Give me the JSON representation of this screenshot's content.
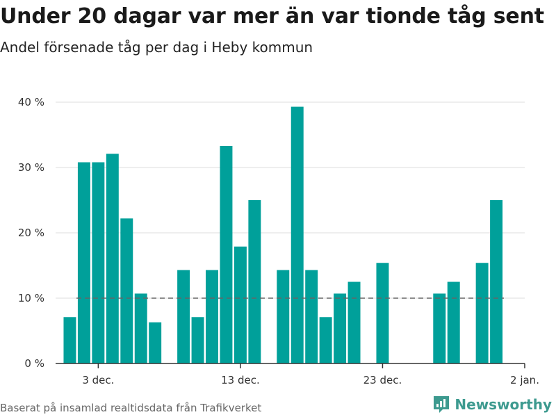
{
  "header": {
    "title": "Under 20 dagar var mer än var tionde tåg sent",
    "subtitle": "Andel försenade tåg per dag i Heby kommun"
  },
  "footer": {
    "source": "Baserat på insamlad realtidsdata från Trafikverket",
    "brand": "Newsworthy",
    "brand_icon": "chart-logo-icon"
  },
  "colors": {
    "bar": "#00a09a",
    "grid": "#dddddd",
    "reference": "#666666",
    "axis": "#333333",
    "brand": "#3d9a8f"
  },
  "chart_data": {
    "type": "bar",
    "title": "",
    "xlabel": "",
    "ylabel": "",
    "unit": "%",
    "ylim": [
      0,
      40
    ],
    "yticks": [
      {
        "value": 0,
        "label": "0 %"
      },
      {
        "value": 10,
        "label": "10 %"
      },
      {
        "value": 20,
        "label": "20 %"
      },
      {
        "value": 30,
        "label": "30 %"
      },
      {
        "value": 40,
        "label": "40 %"
      }
    ],
    "xlim": [
      "2023-11-30",
      "2024-01-02"
    ],
    "xticks": [
      {
        "date": "2023-12-03",
        "label": "3 dec."
      },
      {
        "date": "2023-12-13",
        "label": "13 dec."
      },
      {
        "date": "2023-12-23",
        "label": "23 dec."
      },
      {
        "date": "2024-01-02",
        "label": "2 jan."
      }
    ],
    "reference_line": 10,
    "grid": true,
    "legend": "none",
    "x": [
      "2023-12-01",
      "2023-12-02",
      "2023-12-03",
      "2023-12-04",
      "2023-12-05",
      "2023-12-06",
      "2023-12-07",
      "2023-12-08",
      "2023-12-09",
      "2023-12-10",
      "2023-12-11",
      "2023-12-12",
      "2023-12-13",
      "2023-12-14",
      "2023-12-15",
      "2023-12-16",
      "2023-12-17",
      "2023-12-18",
      "2023-12-19",
      "2023-12-20",
      "2023-12-21",
      "2023-12-22",
      "2023-12-23",
      "2023-12-24",
      "2023-12-25",
      "2023-12-26",
      "2023-12-27",
      "2023-12-28",
      "2023-12-29",
      "2023-12-30",
      "2023-12-31"
    ],
    "values": [
      7.1,
      30.8,
      30.8,
      32.1,
      22.2,
      10.7,
      6.3,
      null,
      14.3,
      7.1,
      14.3,
      33.3,
      17.9,
      25.0,
      null,
      14.3,
      39.3,
      14.3,
      7.1,
      10.7,
      12.5,
      null,
      15.4,
      null,
      null,
      null,
      10.7,
      12.5,
      null,
      15.4,
      25.0
    ]
  }
}
